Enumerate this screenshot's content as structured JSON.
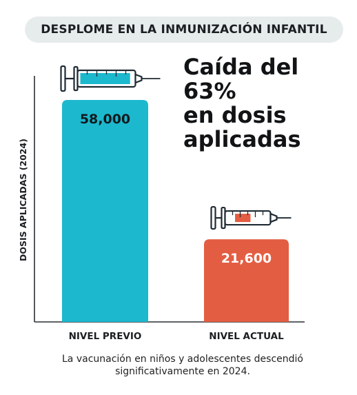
{
  "title": "DESPLOME EN LA INMUNIZACIÓN INFANTIL",
  "headline": {
    "line1": "Caída del 63%",
    "line2": "en dosis",
    "line3": "aplicadas"
  },
  "footnote": {
    "line1": "La vacunación en niños y adolescentes descendió",
    "line2": "significativamente en 2024."
  },
  "colors": {
    "bar_previo": "#1cb8ce",
    "bar_actual": "#e35d42",
    "syringe_stroke": "#1f2a33",
    "syringe_fill_previo": "#1cb8ce",
    "syringe_fill_actual": "#e35d42",
    "title_bg": "#e6ebec"
  },
  "icons": [
    "syringe-icon",
    "syringe-icon"
  ],
  "chart_data": {
    "type": "bar",
    "categories": [
      "NIVEL PREVIO",
      "NIVEL ACTUAL"
    ],
    "values": [
      58000,
      21600
    ],
    "value_labels": [
      "58,000",
      "21,600"
    ],
    "ylabel": "DOSIS APLICADAS (2024)",
    "xlabel": "",
    "ylim": [
      0,
      58000
    ],
    "grid": false,
    "legend": "none"
  }
}
